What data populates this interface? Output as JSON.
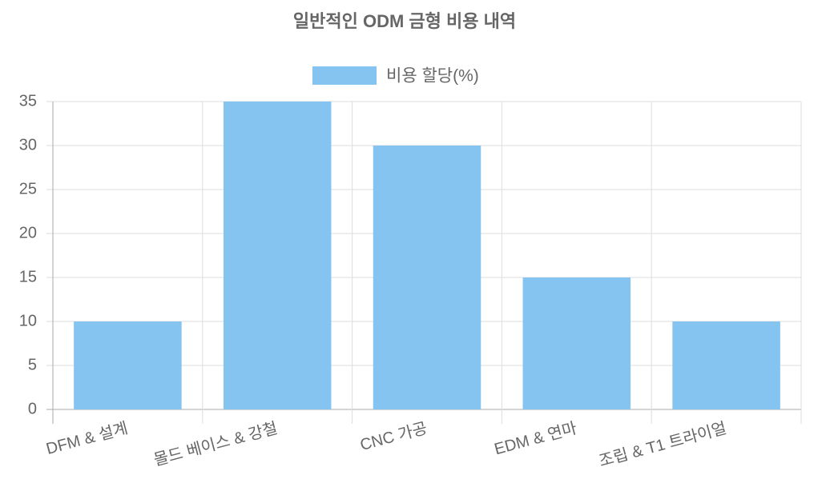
{
  "chart_data": {
    "type": "bar",
    "title": "일반적인 ODM 금형 비용 내역",
    "categories": [
      "DFM & 설계",
      "몰드 베이스 & 강철",
      "CNC 가공",
      "EDM & 연마",
      "조립 & T1 트라이얼"
    ],
    "series": [
      {
        "name": "비용 할당(%)",
        "color": "#85c3f0",
        "values": [
          10,
          35,
          30,
          15,
          10
        ]
      }
    ],
    "ylim": [
      0,
      35
    ],
    "yticks": [
      0,
      5,
      10,
      15,
      20,
      25,
      30,
      35
    ],
    "grid": true,
    "legend": "top"
  }
}
